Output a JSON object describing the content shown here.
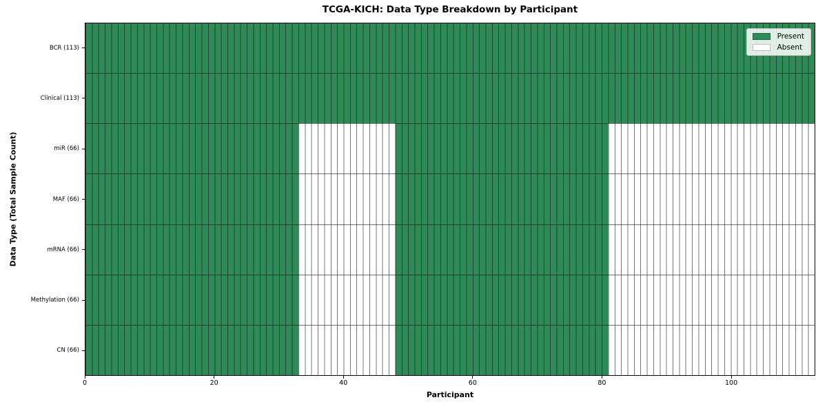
{
  "chart_data": {
    "type": "heatmap",
    "title": "TCGA-KICH: Data Type Breakdown by Participant",
    "xlabel": "Participant",
    "ylabel": "Data Type (Total Sample Count)",
    "xlim": [
      0,
      113
    ],
    "n_participants": 113,
    "x_ticks": [
      0,
      20,
      40,
      60,
      80,
      100
    ],
    "grid": false,
    "legend": {
      "position": "upper-right",
      "items": [
        {
          "label": "Present",
          "color": "#2e8b57"
        },
        {
          "label": "Absent",
          "color": "#ffffff"
        }
      ]
    },
    "rows": [
      {
        "label": "BCR (113)",
        "name": "BCR",
        "present_count": 113,
        "present_ranges": [
          [
            0,
            113
          ]
        ]
      },
      {
        "label": "Clinical (113)",
        "name": "Clinical",
        "present_count": 113,
        "present_ranges": [
          [
            0,
            113
          ]
        ]
      },
      {
        "label": "miR (66)",
        "name": "miR",
        "present_count": 66,
        "present_ranges": [
          [
            0,
            33
          ],
          [
            48,
            81
          ]
        ]
      },
      {
        "label": "MAF (66)",
        "name": "MAF",
        "present_count": 66,
        "present_ranges": [
          [
            0,
            33
          ],
          [
            48,
            81
          ]
        ]
      },
      {
        "label": "mRNA (66)",
        "name": "mRNA",
        "present_count": 66,
        "present_ranges": [
          [
            0,
            33
          ],
          [
            48,
            81
          ]
        ]
      },
      {
        "label": "Methylation (66)",
        "name": "Methylation",
        "present_count": 66,
        "present_ranges": [
          [
            0,
            33
          ],
          [
            48,
            81
          ]
        ]
      },
      {
        "label": "CN (66)",
        "name": "CN",
        "present_count": 66,
        "present_ranges": [
          [
            0,
            33
          ],
          [
            48,
            81
          ]
        ]
      }
    ],
    "colors": {
      "present": "#2e8b57",
      "absent": "#ffffff",
      "cell_edge": "rgba(25,25,25,0.6)",
      "row_edge": "rgba(20,20,20,0.6)",
      "axis": "#000000"
    }
  }
}
